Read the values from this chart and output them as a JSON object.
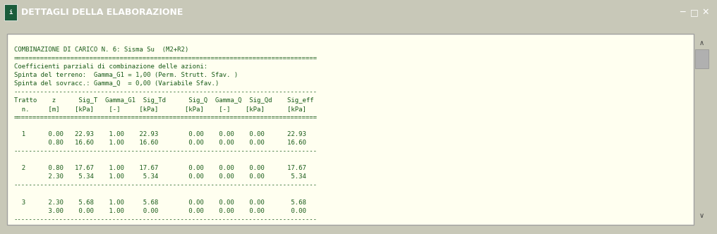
{
  "title_bar_text": "DETTAGLI DELLA ELABORAZIONE",
  "title_bar_color": "#2E8B6E",
  "title_bar_text_color": "#FFFFFF",
  "window_bg": "#C8C8B8",
  "content_bg": "#FFFFF0",
  "scrollbar_bg": "#E0E0E0",
  "scrollbar_thumb": "#B0B0B0",
  "content_border": "#A0A0A0",
  "content_text_color": "#1A5C1A",
  "font_family": "monospace",
  "content_lines": [
    "",
    "COMBINAZIONE DI CARICO N. 6: Sisma Su  (M2+R2)",
    "================================================================================",
    "Coefficienti parziali di combinazione delle azioni:",
    "Spinta del terreno:  Gamma_G1 = 1,00 (Perm. Strutt. Sfav. )",
    "Spinta del sovracc.: Gamma_Q  = 0,00 (Variabile Sfav.)",
    "--------------------------------------------------------------------------------",
    "Tratto    z      Sig_T  Gamma_G1  Sig_Td      Sig_Q  Gamma_Q  Sig_Qd    Sig_eff",
    "  n.     [m]    [kPa]    [-]     [kPa]       [kPa]    [-]    [kPa]      [kPa]",
    "================================================================================",
    "",
    "  1      0.00   22.93    1.00    22.93        0.00    0.00    0.00      22.93",
    "         0.80   16.60    1.00    16.60        0.00    0.00    0.00      16.60",
    "--------------------------------------------------------------------------------",
    "",
    "  2      0.80   17.67    1.00    17.67        0.00    0.00    0.00      17.67",
    "         2.30    5.34    1.00     5.34        0.00    0.00    0.00       5.34",
    "--------------------------------------------------------------------------------",
    "",
    "  3      2.30    5.68    1.00     5.68        0.00    0.00    0.00       5.68",
    "         3.00    0.00    1.00     0.00        0.00    0.00    0.00       0.00",
    "--------------------------------------------------------------------------------"
  ]
}
